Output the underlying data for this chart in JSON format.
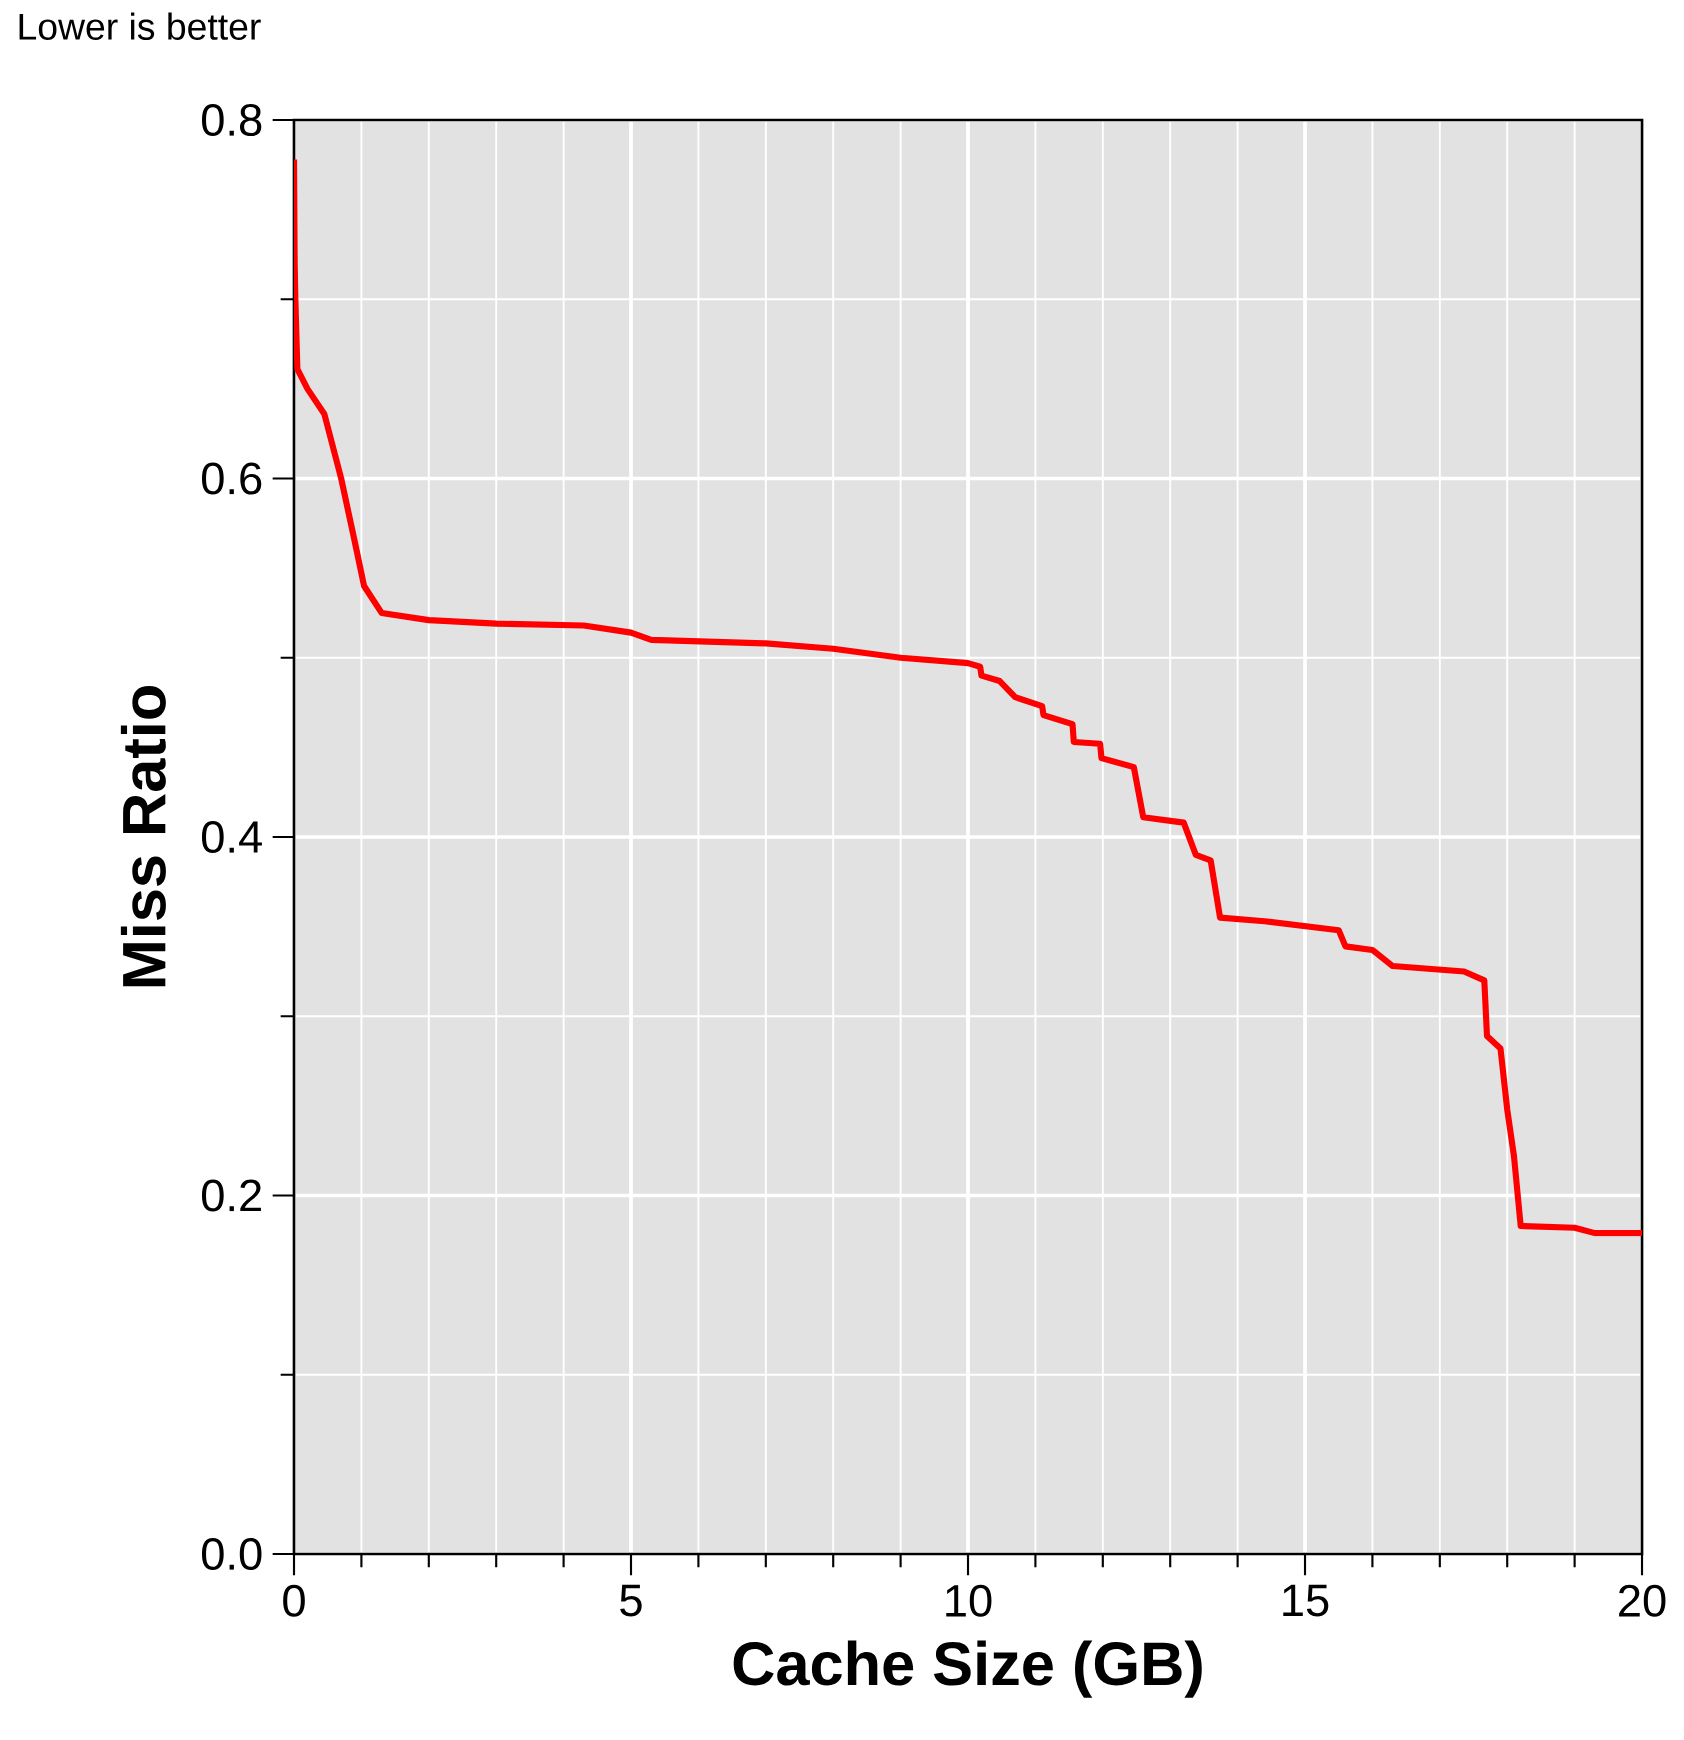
{
  "chart_data": {
    "type": "line",
    "xlabel": "Cache Size (GB)",
    "ylabel": "Miss Ratio",
    "annotations": [
      "Lower is better"
    ],
    "xlim": [
      0,
      20
    ],
    "ylim": [
      0,
      0.8
    ],
    "xticks": [
      0,
      5,
      10,
      15,
      20
    ],
    "yticks": [
      {
        "value": 0,
        "label": "0.0"
      },
      0.2,
      0.4,
      0.6,
      0.8
    ],
    "grid": true,
    "line_style": "solid",
    "marker": "none",
    "series": [
      {
        "color": "#ff0000",
        "x": [
          0,
          0.01,
          0.02,
          0.05,
          0.2,
          0.45,
          0.7,
          0.9,
          1.04,
          1.3,
          2,
          3,
          4.3,
          5,
          5.3,
          7,
          8,
          9,
          10,
          10.18,
          10.2,
          10.47,
          10.7,
          11.1,
          11.12,
          11.55,
          11.57,
          11.96,
          11.98,
          12.46,
          12.6,
          13.2,
          13.38,
          13.6,
          13.74,
          14.4,
          15.5,
          15.6,
          16.0,
          16.3,
          17.36,
          17.66,
          17.7,
          17.9,
          18.0,
          18.1,
          18.2,
          19.0,
          19.3,
          20
        ],
        "values": [
          0.778,
          0.72,
          0.7,
          0.661,
          0.65,
          0.636,
          0.6,
          0.565,
          0.54,
          0.525,
          0.521,
          0.519,
          0.518,
          0.514,
          0.51,
          0.508,
          0.505,
          0.5,
          0.497,
          0.495,
          0.49,
          0.487,
          0.478,
          0.473,
          0.468,
          0.463,
          0.453,
          0.452,
          0.444,
          0.439,
          0.411,
          0.408,
          0.39,
          0.387,
          0.355,
          0.353,
          0.348,
          0.339,
          0.337,
          0.328,
          0.325,
          0.32,
          0.289,
          0.282,
          0.248,
          0.222,
          0.183,
          0.182,
          0.179,
          0.179
        ]
      }
    ]
  }
}
